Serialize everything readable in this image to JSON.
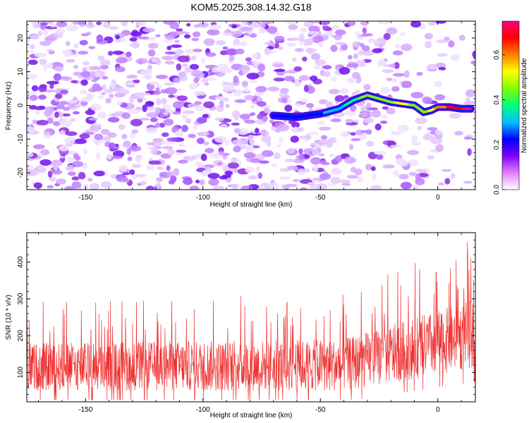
{
  "title": "KOM5.2025.308.14.32.G18",
  "chart_data": [
    {
      "type": "heatmap",
      "xlabel": "Height of straight line (km)",
      "ylabel": "Frequency (Hz)",
      "xlim": [
        -175,
        16
      ],
      "ylim": [
        -25,
        25
      ],
      "xticks": [
        -150,
        -100,
        -50,
        0
      ],
      "xtick_labels": [
        "-150",
        "-100",
        "-50",
        "0"
      ],
      "yticks": [
        -20,
        -10,
        0,
        10,
        20
      ],
      "ytick_labels": [
        "-20",
        "-10",
        "0",
        "10",
        "20"
      ],
      "colorbar": {
        "label": "Normalized spectral amplitude",
        "range": [
          0,
          0.75
        ],
        "ticks": [
          0,
          0.2,
          0.4,
          0.6
        ],
        "tick_labels": [
          "0.0",
          "0.2",
          "0.4",
          "0.6"
        ],
        "colors": [
          "#ffffff",
          "#e080ff",
          "#8000ff",
          "#0000ff",
          "#00c0ff",
          "#00ff80",
          "#80ff00",
          "#ffff00",
          "#ff8000",
          "#ff0000",
          "#ff0080"
        ]
      },
      "ridge": {
        "x": [
          -70,
          -60,
          -50,
          -42,
          -36,
          -30,
          -25,
          -20,
          -15,
          -10,
          -6,
          -3,
          0,
          5,
          10,
          14
        ],
        "freq": [
          -3,
          -3.5,
          -2.5,
          -1,
          1.5,
          3,
          2,
          1,
          0.5,
          0,
          -2,
          -1.5,
          -0.5,
          -0.5,
          -1,
          -1
        ],
        "amplitude": [
          0.25,
          0.22,
          0.25,
          0.3,
          0.38,
          0.45,
          0.45,
          0.48,
          0.5,
          0.48,
          0.42,
          0.5,
          0.58,
          0.65,
          0.7,
          0.75
        ]
      }
    },
    {
      "type": "line",
      "xlabel": "Height of straight line (km)",
      "ylabel": "SNR (10 * v/v)",
      "xlim": [
        -175,
        16
      ],
      "ylim": [
        20,
        480
      ],
      "xticks": [
        -150,
        -100,
        -50,
        0
      ],
      "xtick_labels": [
        "-150",
        "-100",
        "-50",
        "0"
      ],
      "yticks": [
        100,
        200,
        300,
        400
      ],
      "ytick_labels": [
        "100",
        "200",
        "300",
        "400"
      ],
      "color": "#ee3030",
      "trend": {
        "x": [
          -175,
          -40,
          16
        ],
        "baseline": [
          115,
          120,
          205
        ],
        "amplitude": [
          100,
          110,
          145
        ]
      }
    }
  ]
}
